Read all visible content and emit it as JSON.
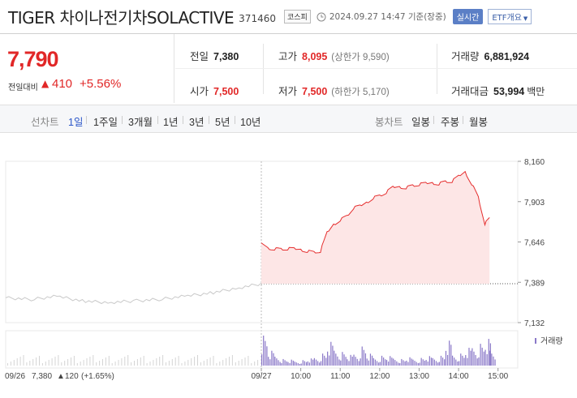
{
  "header": {
    "stock_name": "TIGER 차이나전기차SOLACTIVE",
    "stock_code": "371460",
    "market_badge": "코스피",
    "timestamp": "2024.09.27 14:47 기준(장중)",
    "live_button": "실시간",
    "etf_button": "ETF개요"
  },
  "price": {
    "current": "7,790",
    "change_label": "전일대비",
    "change_amount": "410",
    "change_rate": "+5.56%",
    "direction": "up"
  },
  "stats": {
    "prev_close": {
      "label": "전일",
      "value": "7,380"
    },
    "high": {
      "label": "고가",
      "value": "8,095",
      "sub": "(상한가 9,590)"
    },
    "volume": {
      "label": "거래량",
      "value": "6,881,924"
    },
    "open": {
      "label": "시가",
      "value": "7,500"
    },
    "low": {
      "label": "저가",
      "value": "7,500",
      "sub": "(하한가 5,170)"
    },
    "amount": {
      "label": "거래대금",
      "value": "53,994",
      "unit": "백만"
    }
  },
  "tabs": {
    "line_label": "선차트",
    "periods": [
      "1일",
      "1주일",
      "3개월",
      "1년",
      "3년",
      "5년",
      "10년"
    ],
    "active_period": "1일",
    "candle_label": "봉차트",
    "candles": [
      "일봉",
      "주봉",
      "월봉"
    ]
  },
  "chart_data": {
    "type": "line",
    "y_ticks": [
      "8,160",
      "7,903",
      "7,646",
      "7,389",
      "7,132"
    ],
    "ylim": [
      7132,
      8160
    ],
    "reference_price": 7380,
    "x_ticks": [
      "09/27",
      "10:00",
      "11:00",
      "12:00",
      "13:00",
      "14:00",
      "15:00"
    ],
    "volume_label": "거래량",
    "prev_day": {
      "date": "09/26",
      "close": "7,380",
      "change": "120",
      "rate": "(+1.65%)",
      "x": [
        0,
        10,
        20,
        30,
        40,
        50,
        60,
        70,
        80,
        90,
        100
      ],
      "y": [
        7290,
        7280,
        7300,
        7270,
        7260,
        7270,
        7280,
        7300,
        7320,
        7350,
        7380
      ]
    },
    "series": [
      {
        "x": [
          "09:00",
          "09:10",
          "09:20",
          "09:30",
          "09:40",
          "09:50",
          "10:00",
          "10:10",
          "10:20",
          "10:30",
          "10:40",
          "10:50",
          "11:00",
          "11:10",
          "11:20",
          "11:30",
          "11:40",
          "11:50",
          "12:00",
          "12:10",
          "12:20",
          "12:30",
          "12:40",
          "12:50",
          "13:00",
          "13:10",
          "13:20",
          "13:30",
          "13:40",
          "13:50",
          "14:00",
          "14:10",
          "14:20",
          "14:30",
          "14:40",
          "14:47"
        ],
        "y": [
          7640,
          7610,
          7605,
          7600,
          7600,
          7598,
          7600,
          7590,
          7580,
          7585,
          7700,
          7760,
          7790,
          7810,
          7860,
          7870,
          7900,
          7930,
          7940,
          7960,
          7990,
          8000,
          7995,
          8005,
          8010,
          8015,
          8025,
          8020,
          8030,
          8030,
          8060,
          8095,
          8020,
          7930,
          7760,
          7790
        ]
      }
    ],
    "volume": [
      {
        "x": "09:00",
        "v": 55
      },
      {
        "x": "09:10",
        "v": 25
      },
      {
        "x": "09:20",
        "v": 18
      },
      {
        "x": "09:30",
        "v": 12
      },
      {
        "x": "09:40",
        "v": 10
      },
      {
        "x": "09:50",
        "v": 8
      },
      {
        "x": "10:00",
        "v": 10
      },
      {
        "x": "10:10",
        "v": 12
      },
      {
        "x": "10:20",
        "v": 15
      },
      {
        "x": "10:30",
        "v": 22
      },
      {
        "x": "10:40",
        "v": 40
      },
      {
        "x": "10:50",
        "v": 30
      },
      {
        "x": "11:00",
        "v": 25
      },
      {
        "x": "11:10",
        "v": 18
      },
      {
        "x": "11:20",
        "v": 22
      },
      {
        "x": "11:30",
        "v": 35
      },
      {
        "x": "11:40",
        "v": 20
      },
      {
        "x": "11:50",
        "v": 15
      },
      {
        "x": "12:00",
        "v": 18
      },
      {
        "x": "12:10",
        "v": 16
      },
      {
        "x": "12:20",
        "v": 14
      },
      {
        "x": "12:30",
        "v": 12
      },
      {
        "x": "12:40",
        "v": 14
      },
      {
        "x": "12:50",
        "v": 12
      },
      {
        "x": "13:00",
        "v": 14
      },
      {
        "x": "13:10",
        "v": 16
      },
      {
        "x": "13:20",
        "v": 15
      },
      {
        "x": "13:30",
        "v": 18
      },
      {
        "x": "13:40",
        "v": 42
      },
      {
        "x": "13:50",
        "v": 20
      },
      {
        "x": "14:00",
        "v": 22
      },
      {
        "x": "14:10",
        "v": 30
      },
      {
        "x": "14:20",
        "v": 35
      },
      {
        "x": "14:30",
        "v": 40
      },
      {
        "x": "14:40",
        "v": 45
      },
      {
        "x": "14:47",
        "v": 30
      }
    ]
  },
  "colors": {
    "up": "#e12727",
    "active_tab": "#2b56c9",
    "line": "#e52e2e",
    "fill": "#fde6e6",
    "volume_bar": "#8a78c8",
    "prev_line": "#c9c9c9"
  }
}
